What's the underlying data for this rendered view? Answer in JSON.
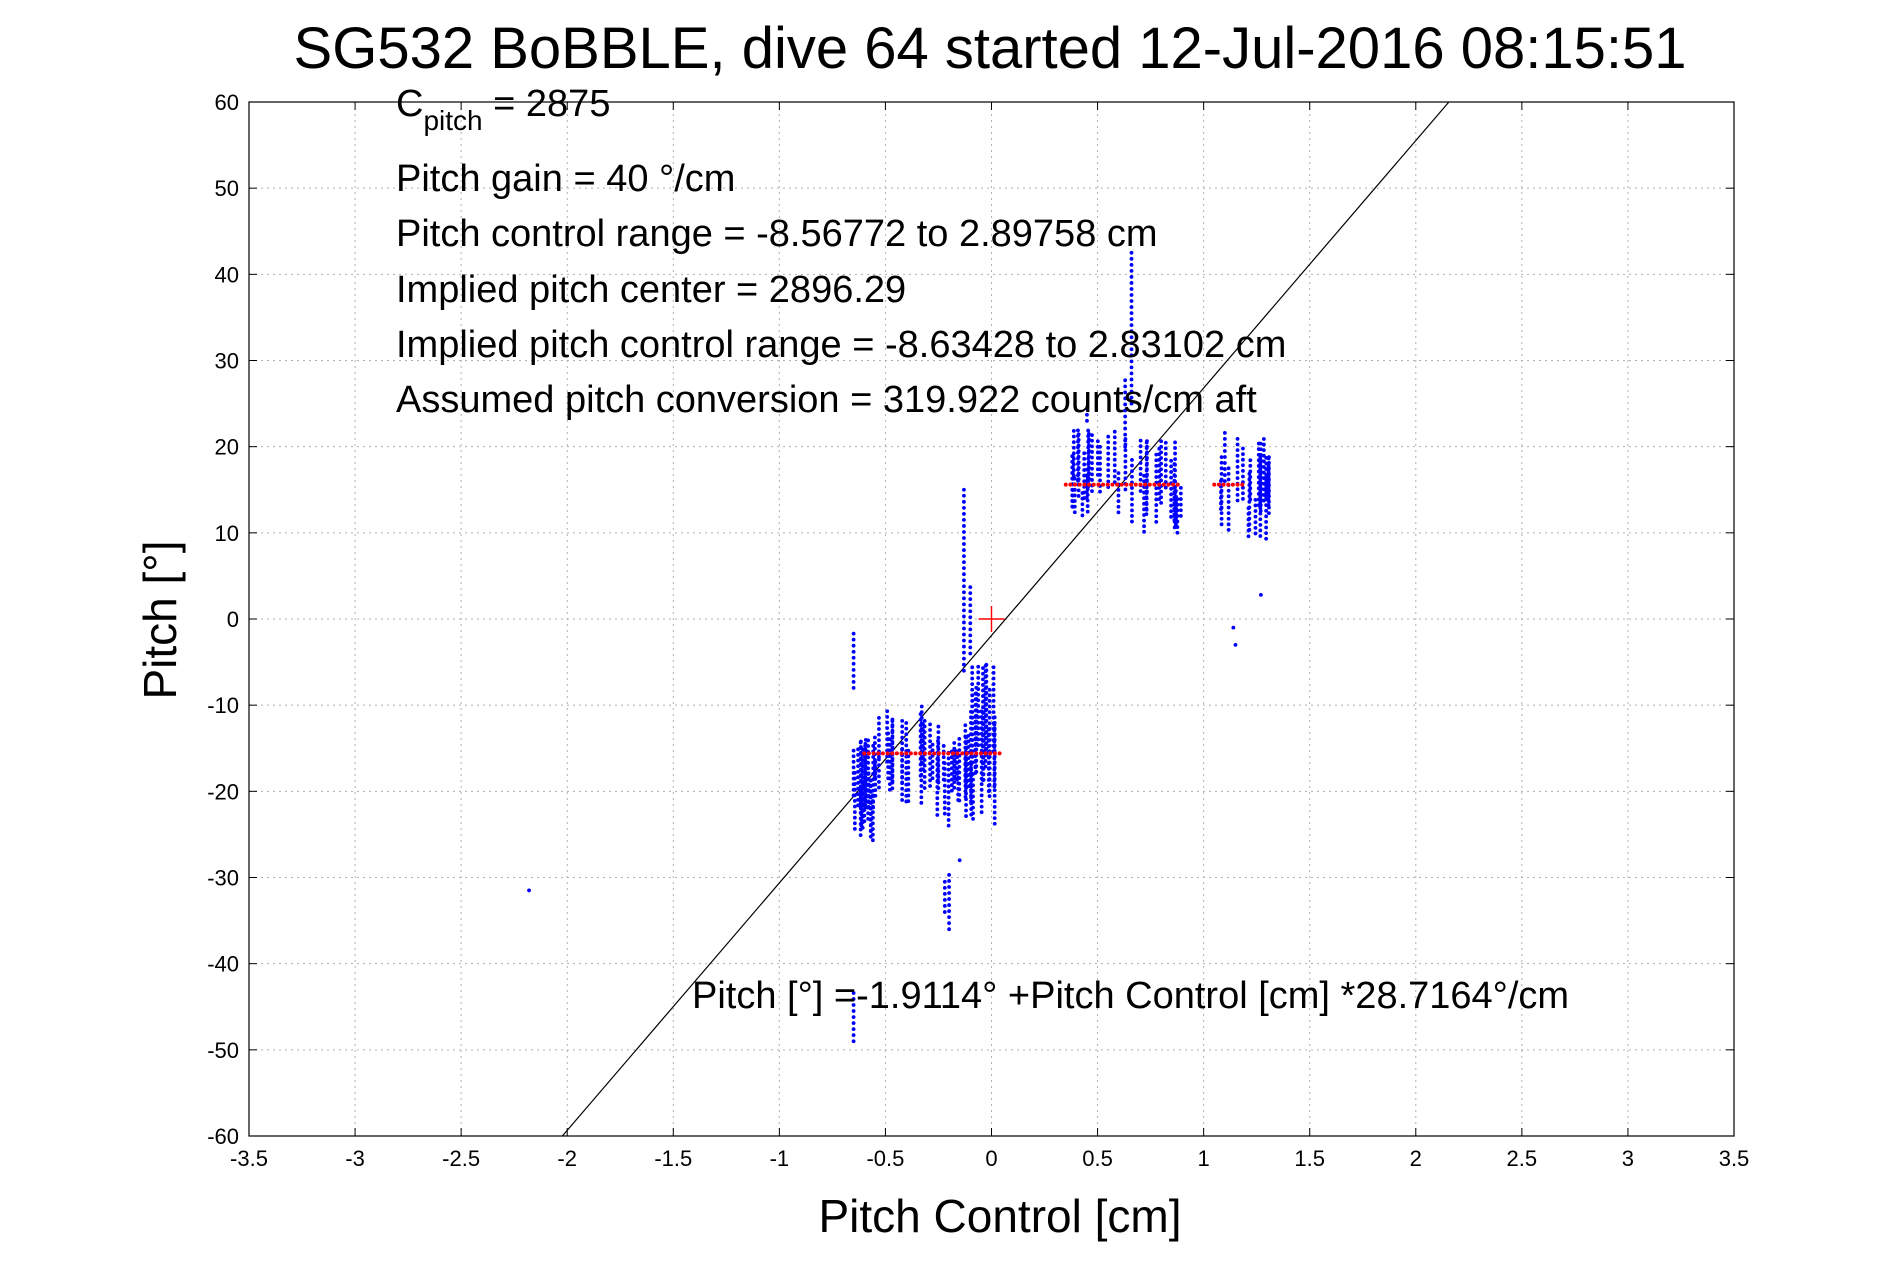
{
  "chart_data": {
    "type": "scatter",
    "title": "SG532 BoBBLE, dive 64 started 12-Jul-2016 08:15:51",
    "xlabel": "Pitch Control [cm]",
    "ylabel": "Pitch [°]",
    "xlim": [
      -3.5,
      3.5
    ],
    "ylim": [
      -60,
      60
    ],
    "xticks": [
      -3.5,
      -3,
      -2.5,
      -2,
      -1.5,
      -1,
      -0.5,
      0,
      0.5,
      1,
      1.5,
      2,
      2.5,
      3,
      3.5
    ],
    "yticks": [
      -60,
      -50,
      -40,
      -30,
      -20,
      -10,
      0,
      10,
      20,
      30,
      40,
      50,
      60
    ],
    "grid": true,
    "colors": {
      "observed": "#0000ff",
      "fit_marker": "#ff0000",
      "fit_line": "#000000"
    },
    "annotations": {
      "c_pitch_main": "C",
      "c_pitch_sub": "pitch",
      "c_pitch_value": " = 2875",
      "pitch_gain": "Pitch gain = 40 °/cm",
      "control_range": "Pitch control range = -8.56772 to 2.89758 cm",
      "implied_center": "Implied pitch center = 2896.29",
      "implied_range": "Implied pitch control range = -8.63428 to 2.83102 cm",
      "conversion": "Assumed pitch conversion = 319.922 counts/cm aft",
      "fit_equation": "Pitch [°] =-1.9114° +Pitch Control [cm] *28.7164°/cm"
    },
    "fit": {
      "intercept": -1.9114,
      "slope": 28.7164
    },
    "center_marker": [
      0,
      0
    ],
    "observed_clusters": [
      {
        "x_range": [
          -0.65,
          -0.55
        ],
        "y_range": [
          -26,
          -14
        ]
      },
      {
        "x_range": [
          -0.55,
          -0.3
        ],
        "y_range": [
          -22,
          -10
        ]
      },
      {
        "x_range": [
          -0.3,
          -0.1
        ],
        "y_range": [
          -24,
          -12
        ]
      },
      {
        "x_range": [
          -0.1,
          0.02
        ],
        "y_range": [
          -24,
          -5
        ]
      },
      {
        "x_range": [
          0.35,
          0.6
        ],
        "y_range": [
          12,
          22
        ]
      },
      {
        "x_range": [
          0.6,
          0.9
        ],
        "y_range": [
          10,
          21
        ]
      },
      {
        "x_range": [
          1.05,
          1.32
        ],
        "y_range": [
          9,
          21
        ]
      }
    ],
    "observed_columns": [
      {
        "x": -0.65,
        "y_range": [
          -8,
          -1
        ]
      },
      {
        "x": -0.65,
        "y_range": [
          -49,
          -43
        ]
      },
      {
        "x": -0.13,
        "y_range": [
          -6,
          15
        ]
      },
      {
        "x": -0.1,
        "y_range": [
          -4,
          4
        ]
      },
      {
        "x": -0.2,
        "y_range": [
          -36,
          -29
        ]
      },
      {
        "x": -0.22,
        "y_range": [
          -34,
          -30
        ]
      },
      {
        "x": 0.45,
        "y_range": [
          23,
          25
        ]
      },
      {
        "x": 0.66,
        "y_range": [
          25,
          43
        ]
      },
      {
        "x": 0.63,
        "y_range": [
          20,
          28
        ]
      },
      {
        "x": 1.1,
        "y_range": [
          16,
          22
        ]
      }
    ],
    "observed_outliers": [
      {
        "x": -2.18,
        "y": -31.5
      },
      {
        "x": -0.15,
        "y": -28
      },
      {
        "x": 1.27,
        "y": 2.8
      },
      {
        "x": 1.14,
        "y": -1
      },
      {
        "x": 1.15,
        "y": -3
      }
    ],
    "fit_markers": [
      {
        "x_range": [
          -0.6,
          0.05
        ],
        "y": -15.6
      },
      {
        "x_range": [
          0.35,
          0.9
        ],
        "y": 15.6
      },
      {
        "x_range": [
          1.05,
          1.2
        ],
        "y": 15.6
      }
    ]
  }
}
